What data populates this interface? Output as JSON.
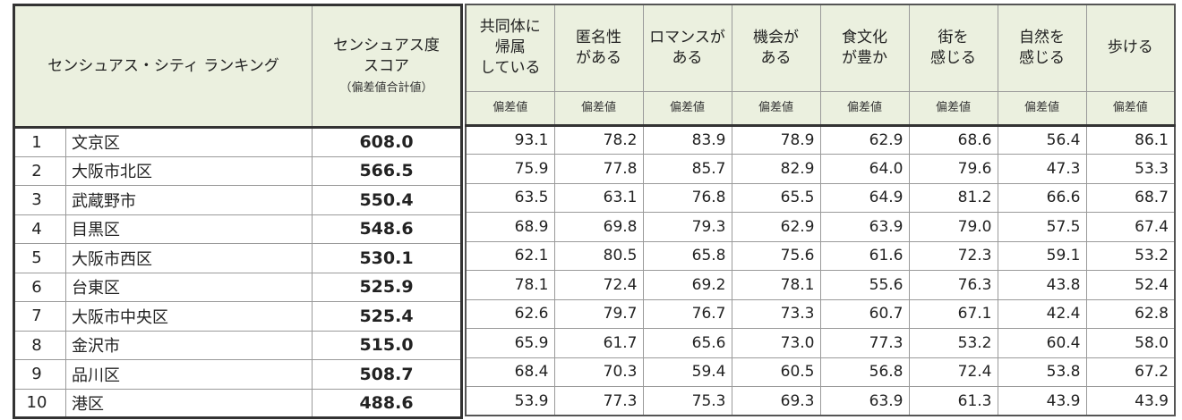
{
  "header": {
    "title": "センシュアス・シティ ランキング",
    "score_line1": "センシュアス度",
    "score_line2": "スコア",
    "score_sub": "（偏差値合計値）",
    "metrics": [
      [
        "共同体に",
        "帰属",
        "している"
      ],
      [
        "匿名性",
        "がある"
      ],
      [
        "ロマンスが",
        "ある"
      ],
      [
        "機会が",
        "ある"
      ],
      [
        "食文化",
        "が豊か"
      ],
      [
        "街を",
        "感じる"
      ],
      [
        "自然を",
        "感じる"
      ],
      [
        "歩ける"
      ]
    ],
    "unit": "偏差値"
  },
  "rows": [
    {
      "rank": "1",
      "city": "文京区",
      "score": "608.0",
      "values": [
        "93.1",
        "78.2",
        "83.9",
        "78.9",
        "62.9",
        "68.6",
        "56.4",
        "86.1"
      ]
    },
    {
      "rank": "2",
      "city": "大阪市北区",
      "score": "566.5",
      "values": [
        "75.9",
        "77.8",
        "85.7",
        "82.9",
        "64.0",
        "79.6",
        "47.3",
        "53.3"
      ]
    },
    {
      "rank": "3",
      "city": "武蔵野市",
      "score": "550.4",
      "values": [
        "63.5",
        "63.1",
        "76.8",
        "65.5",
        "64.9",
        "81.2",
        "66.6",
        "68.7"
      ]
    },
    {
      "rank": "4",
      "city": "目黒区",
      "score": "548.6",
      "values": [
        "68.9",
        "69.8",
        "79.3",
        "62.9",
        "63.9",
        "79.0",
        "57.5",
        "67.4"
      ]
    },
    {
      "rank": "5",
      "city": "大阪市西区",
      "score": "530.1",
      "values": [
        "62.1",
        "80.5",
        "65.8",
        "75.6",
        "61.6",
        "72.3",
        "59.1",
        "53.2"
      ]
    },
    {
      "rank": "6",
      "city": "台東区",
      "score": "525.9",
      "values": [
        "78.1",
        "72.4",
        "69.2",
        "78.1",
        "55.6",
        "76.3",
        "43.8",
        "52.4"
      ]
    },
    {
      "rank": "7",
      "city": "大阪市中央区",
      "score": "525.4",
      "values": [
        "62.6",
        "79.7",
        "76.7",
        "73.3",
        "60.7",
        "67.1",
        "42.4",
        "62.8"
      ]
    },
    {
      "rank": "8",
      "city": "金沢市",
      "score": "515.0",
      "values": [
        "65.9",
        "61.7",
        "65.6",
        "73.0",
        "77.3",
        "53.2",
        "60.4",
        "58.0"
      ]
    },
    {
      "rank": "9",
      "city": "品川区",
      "score": "508.7",
      "values": [
        "68.4",
        "70.3",
        "59.4",
        "60.5",
        "56.8",
        "72.4",
        "53.8",
        "67.2"
      ]
    },
    {
      "rank": "10",
      "city": "港区",
      "score": "488.6",
      "values": [
        "53.9",
        "77.3",
        "75.3",
        "69.3",
        "63.9",
        "61.3",
        "43.9",
        "43.9"
      ]
    }
  ]
}
